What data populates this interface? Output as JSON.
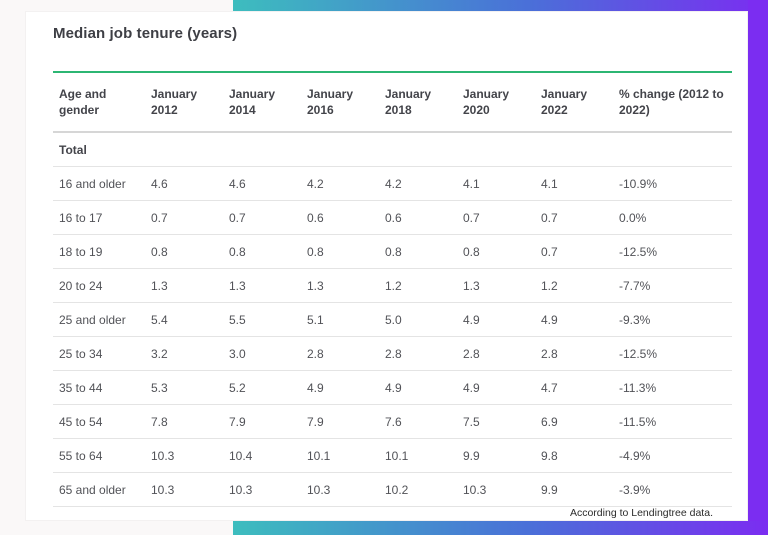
{
  "chart": {
    "title": "Median job tenure (years)"
  },
  "footer": {
    "attribution": "According to Lendingtree data."
  },
  "colors": {
    "accent_green": "#2cb673",
    "gradient_teal": "#3dbdbe",
    "gradient_blue": "#4a70d8",
    "gradient_purple": "#7b2df1"
  },
  "chart_data": {
    "type": "table",
    "title": "Median job tenure (years)",
    "columns": [
      "Age and gender",
      "January 2012",
      "January 2014",
      "January 2016",
      "January 2018",
      "January 2020",
      "January 2022",
      "% change (2012 to 2022)"
    ],
    "section_label": "Total",
    "rows": [
      {
        "label": "16 and older",
        "values": [
          "4.6",
          "4.6",
          "4.2",
          "4.2",
          "4.1",
          "4.1",
          "-10.9%"
        ]
      },
      {
        "label": "16 to 17",
        "values": [
          "0.7",
          "0.7",
          "0.6",
          "0.6",
          "0.7",
          "0.7",
          "0.0%"
        ]
      },
      {
        "label": "18 to 19",
        "values": [
          "0.8",
          "0.8",
          "0.8",
          "0.8",
          "0.8",
          "0.7",
          "-12.5%"
        ]
      },
      {
        "label": "20 to 24",
        "values": [
          "1.3",
          "1.3",
          "1.3",
          "1.2",
          "1.3",
          "1.2",
          "-7.7%"
        ]
      },
      {
        "label": "25 and older",
        "values": [
          "5.4",
          "5.5",
          "5.1",
          "5.0",
          "4.9",
          "4.9",
          "-9.3%"
        ]
      },
      {
        "label": "25 to 34",
        "values": [
          "3.2",
          "3.0",
          "2.8",
          "2.8",
          "2.8",
          "2.8",
          "-12.5%"
        ]
      },
      {
        "label": "35 to 44",
        "values": [
          "5.3",
          "5.2",
          "4.9",
          "4.9",
          "4.9",
          "4.7",
          "-11.3%"
        ]
      },
      {
        "label": "45 to 54",
        "values": [
          "7.8",
          "7.9",
          "7.9",
          "7.6",
          "7.5",
          "6.9",
          "-11.5%"
        ]
      },
      {
        "label": "55 to 64",
        "values": [
          "10.3",
          "10.4",
          "10.1",
          "10.1",
          "9.9",
          "9.8",
          "-4.9%"
        ]
      },
      {
        "label": "65 and older",
        "values": [
          "10.3",
          "10.3",
          "10.3",
          "10.2",
          "10.3",
          "9.9",
          "-3.9%"
        ]
      }
    ]
  }
}
